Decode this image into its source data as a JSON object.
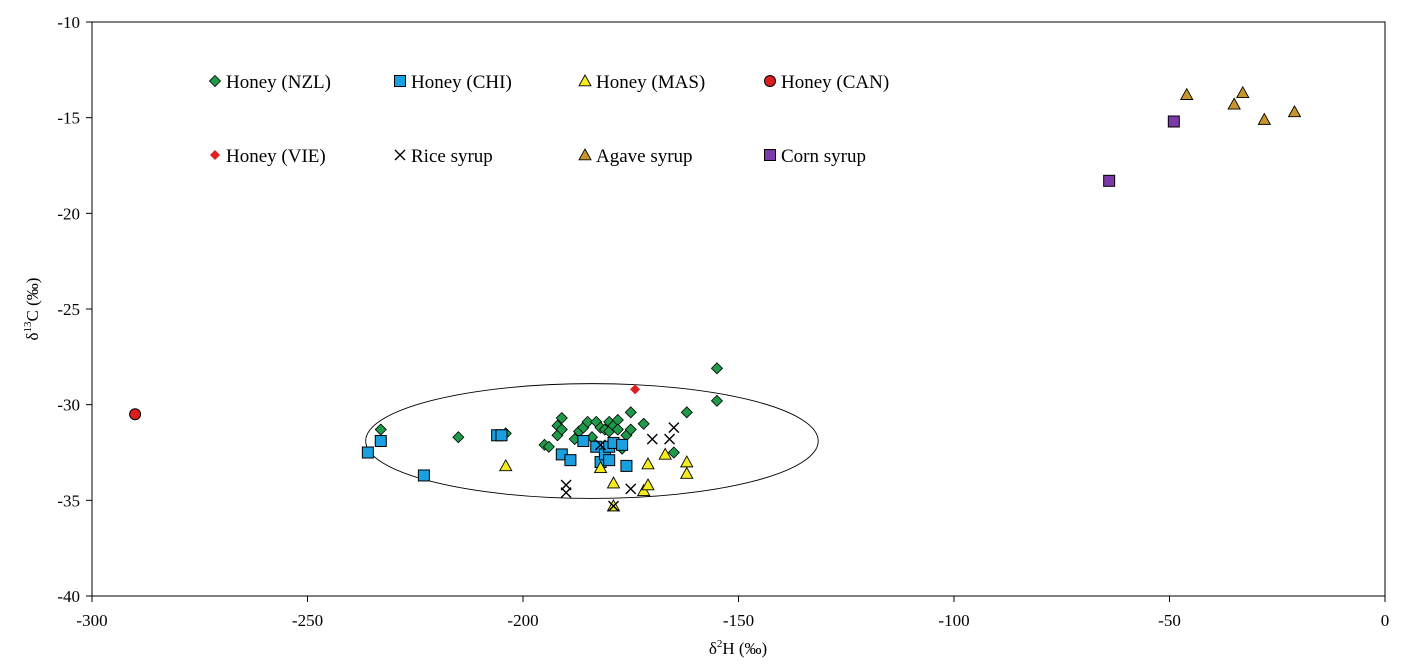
{
  "chart_data": {
    "type": "scatter",
    "title": "",
    "xlabel": "δ²H (‰)",
    "ylabel": "δ¹³C (‰)",
    "xlabel_parts": {
      "base": "δ",
      "sup": "2",
      "rest": "H (‰)"
    },
    "ylabel_parts": {
      "base": "δ",
      "sup": "13",
      "rest": "C (‰)"
    },
    "xlim": [
      -300,
      0
    ],
    "ylim": [
      -40,
      -10
    ],
    "xticks": [
      -300,
      -250,
      -200,
      -150,
      -100,
      -50,
      0
    ],
    "yticks": [
      -40,
      -35,
      -30,
      -25,
      -20,
      -15,
      -10
    ],
    "grid": false,
    "legend_position": "top-left-inside",
    "ellipse": {
      "cx": -184,
      "cy": -31.9,
      "rx": 52.5,
      "ry": 3.0
    },
    "series": [
      {
        "name": "Honey (NZL)",
        "marker": "diamond",
        "color": "#1e9a4a",
        "points": [
          [
            -233,
            -31.3
          ],
          [
            -215,
            -31.7
          ],
          [
            -204,
            -31.5
          ],
          [
            -195,
            -32.1
          ],
          [
            -194,
            -32.2
          ],
          [
            -192,
            -31.1
          ],
          [
            -192,
            -31.6
          ],
          [
            -191,
            -30.7
          ],
          [
            -191,
            -31.3
          ],
          [
            -188,
            -31.8
          ],
          [
            -187,
            -31.4
          ],
          [
            -186,
            -31.2
          ],
          [
            -185,
            -30.9
          ],
          [
            -184,
            -31.7
          ],
          [
            -183,
            -30.9
          ],
          [
            -182,
            -31.2
          ],
          [
            -181,
            -31.3
          ],
          [
            -180,
            -30.9
          ],
          [
            -180,
            -31.4
          ],
          [
            -179,
            -31.1
          ],
          [
            -178,
            -30.8
          ],
          [
            -178,
            -31.3
          ],
          [
            -177,
            -32.3
          ],
          [
            -176,
            -31.6
          ],
          [
            -175,
            -31.3
          ],
          [
            -175,
            -30.4
          ],
          [
            -172,
            -31.0
          ],
          [
            -165,
            -32.5
          ],
          [
            -162,
            -30.4
          ],
          [
            -155,
            -29.8
          ],
          [
            -155,
            -28.1
          ]
        ]
      },
      {
        "name": "Honey (CHI)",
        "marker": "square",
        "color": "#1a9fe0",
        "points": [
          [
            -236,
            -32.5
          ],
          [
            -233,
            -31.9
          ],
          [
            -223,
            -33.7
          ],
          [
            -206,
            -31.6
          ],
          [
            -205,
            -31.6
          ],
          [
            -191,
            -32.6
          ],
          [
            -189,
            -32.9
          ],
          [
            -186,
            -31.9
          ],
          [
            -183,
            -32.2
          ],
          [
            -182,
            -33.0
          ],
          [
            -181,
            -32.6
          ],
          [
            -180,
            -32.9
          ],
          [
            -180,
            -32.2
          ],
          [
            -179,
            -32.0
          ],
          [
            -177,
            -32.1
          ],
          [
            -176,
            -33.2
          ]
        ]
      },
      {
        "name": "Honey (MAS)",
        "marker": "triangle",
        "color": "#f5ec1c",
        "points": [
          [
            -204,
            -33.2
          ],
          [
            -182,
            -33.3
          ],
          [
            -179,
            -34.1
          ],
          [
            -179,
            -35.3
          ],
          [
            -172,
            -34.5
          ],
          [
            -171,
            -34.2
          ],
          [
            -171,
            -33.1
          ],
          [
            -167,
            -32.6
          ],
          [
            -162,
            -33.0
          ],
          [
            -162,
            -33.6
          ]
        ]
      },
      {
        "name": "Honey (CAN)",
        "marker": "circle",
        "color": "#dc1e1e",
        "points": [
          [
            -290,
            -30.5
          ]
        ]
      },
      {
        "name": "Honey (VIE)",
        "marker": "diamond-small",
        "color": "#e02020",
        "points": [
          [
            -174,
            -29.2
          ]
        ]
      },
      {
        "name": "Rice syrup",
        "marker": "x",
        "color": "#000000",
        "points": [
          [
            -190,
            -34.2
          ],
          [
            -190,
            -34.6
          ],
          [
            -182,
            -32.1
          ],
          [
            -179,
            -35.3
          ],
          [
            -175,
            -34.4
          ],
          [
            -170,
            -31.8
          ],
          [
            -166,
            -31.8
          ],
          [
            -165,
            -31.2
          ]
        ]
      },
      {
        "name": "Agave syrup",
        "marker": "triangle",
        "color": "#c8952a",
        "points": [
          [
            -46,
            -13.8
          ],
          [
            -35,
            -14.3
          ],
          [
            -33,
            -13.7
          ],
          [
            -28,
            -15.1
          ],
          [
            -21,
            -14.7
          ]
        ]
      },
      {
        "name": "Corn syrup",
        "marker": "square",
        "color": "#7b3aa8",
        "points": [
          [
            -64,
            -18.3
          ],
          [
            -49,
            -15.2
          ]
        ]
      }
    ]
  }
}
